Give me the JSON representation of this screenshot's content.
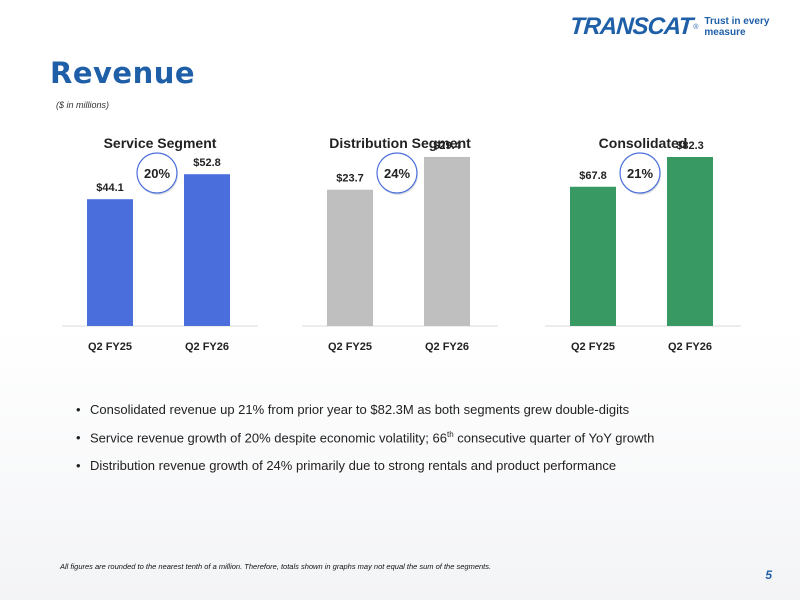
{
  "logo": {
    "brand": "TRANSCAT",
    "registered": "®",
    "tagline": "Trust in every measure"
  },
  "title": "Revenue",
  "subtitle": "($ in millions)",
  "chart_data": [
    {
      "type": "bar",
      "title": "Service Segment",
      "categories": [
        "Q2 FY25",
        "Q2 FY26"
      ],
      "values": [
        44.1,
        52.8
      ],
      "value_labels": [
        "$44.1",
        "$52.8"
      ],
      "growth_badge": "20%",
      "color": "#4a6fdc",
      "ylim": [
        0,
        80
      ],
      "xlabel": "",
      "ylabel": ""
    },
    {
      "type": "bar",
      "title": "Distribution Segment",
      "categories": [
        "Q2 FY25",
        "Q2 FY26"
      ],
      "values": [
        23.7,
        29.4
      ],
      "value_labels": [
        "$23.7",
        "$29.4"
      ],
      "growth_badge": "24%",
      "color": "#bfbfbf",
      "ylim": [
        0,
        40
      ],
      "xlabel": "",
      "ylabel": ""
    },
    {
      "type": "bar",
      "title": "Consolidated",
      "categories": [
        "Q2 FY25",
        "Q2 FY26"
      ],
      "values": [
        67.8,
        82.3
      ],
      "value_labels": [
        "$67.8",
        "$82.3"
      ],
      "growth_badge": "21%",
      "color": "#389a62",
      "ylim": [
        0,
        112
      ],
      "xlabel": "",
      "ylabel": ""
    }
  ],
  "bullets": [
    {
      "text": "Consolidated revenue up 21% from prior year to $82.3M as both segments grew double-digits"
    },
    {
      "before": "Service revenue growth of 20% despite economic volatility; 66",
      "sup": "th",
      "after": " consecutive quarter of YoY growth"
    },
    {
      "text": "Distribution revenue growth of 24% primarily due to strong rentals and product performance"
    }
  ],
  "footnote": "All figures are rounded to the nearest tenth of a million. Therefore, totals shown in graphs may not equal the sum of the segments.",
  "page_number": "5"
}
